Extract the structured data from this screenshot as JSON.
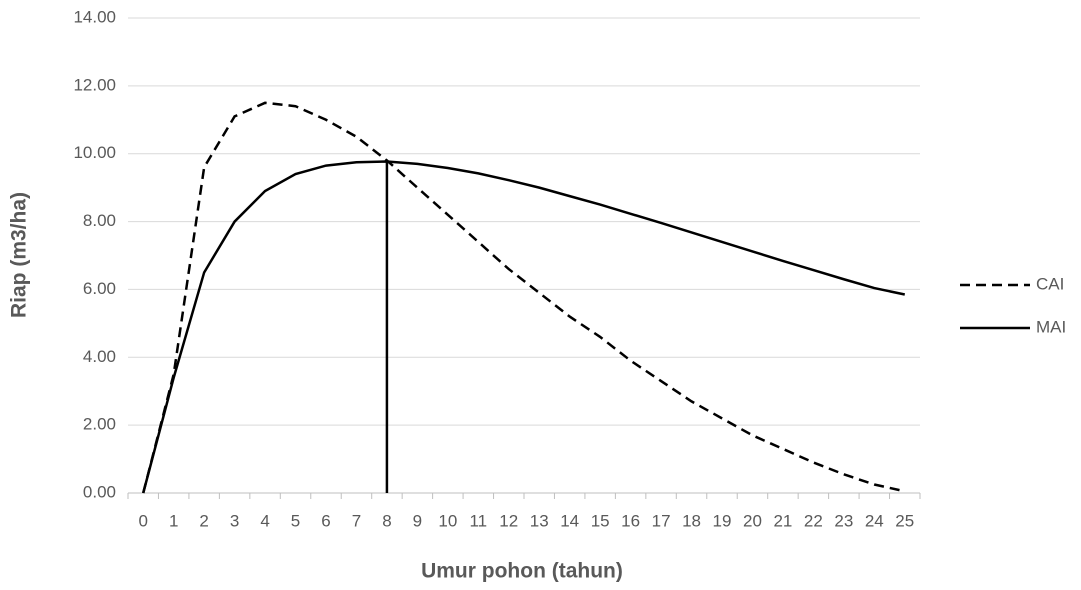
{
  "chart_data": {
    "type": "line",
    "y_label": "Riap (m3/ha)",
    "x_label": "Umur pohon (tahun)",
    "categories": [
      0,
      1,
      2,
      3,
      4,
      5,
      6,
      7,
      8,
      9,
      10,
      11,
      12,
      13,
      14,
      15,
      16,
      17,
      18,
      19,
      20,
      21,
      22,
      23,
      24,
      25
    ],
    "series": [
      {
        "name": "CAI",
        "color": "#000000",
        "dash": true,
        "values": [
          0,
          3.5,
          9.6,
          11.1,
          11.5,
          11.4,
          11.0,
          10.5,
          9.8,
          9.0,
          8.2,
          7.4,
          6.6,
          5.9,
          5.2,
          4.6,
          3.9,
          3.3,
          2.7,
          2.2,
          1.7,
          1.3,
          0.9,
          0.55,
          0.25,
          0.05
        ]
      },
      {
        "name": "MAI",
        "color": "#000000",
        "dash": false,
        "values": [
          0,
          3.4,
          6.5,
          8.0,
          8.9,
          9.4,
          9.65,
          9.75,
          9.77,
          9.7,
          9.58,
          9.42,
          9.22,
          9.0,
          8.75,
          8.5,
          8.23,
          7.96,
          7.68,
          7.4,
          7.12,
          6.84,
          6.57,
          6.3,
          6.04,
          5.85
        ]
      }
    ],
    "vertical_line": {
      "x": 8,
      "y": 9.77
    },
    "ylim": [
      0,
      14
    ],
    "yticks": [
      {
        "value": 0,
        "label": "0.00"
      },
      {
        "value": 2,
        "label": "2.00"
      },
      {
        "value": 4,
        "label": "4.00"
      },
      {
        "value": 6,
        "label": "6.00"
      },
      {
        "value": 8,
        "label": "8.00"
      },
      {
        "value": 10,
        "label": "10.00"
      },
      {
        "value": 12,
        "label": "12.00"
      },
      {
        "value": 14,
        "label": "14.00"
      }
    ],
    "grid": true,
    "legend": "right"
  }
}
